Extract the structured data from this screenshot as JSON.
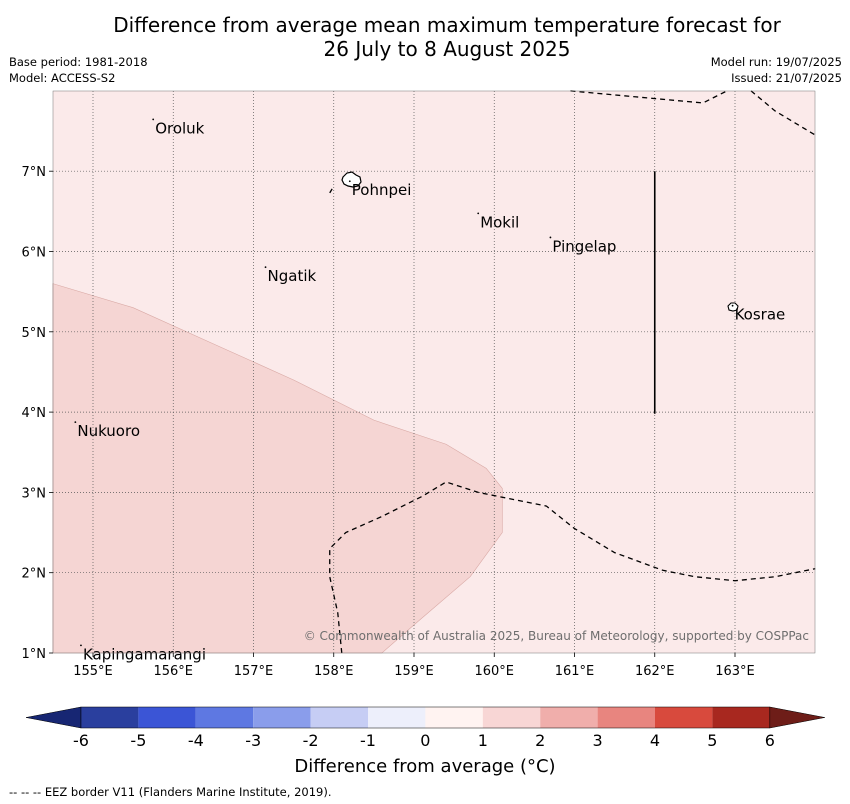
{
  "title_line1": "Difference from average mean maximum temperature forecast for",
  "title_line2": "26 July to 8 August 2025",
  "base_period": "Base period: 1981-2018",
  "model": "Model: ACCESS-S2",
  "model_run": "Model run: 19/07/2025",
  "issued": "Issued: 21/07/2025",
  "map": {
    "lon_range": [
      154.5,
      164.0
    ],
    "lat_range": [
      1.0,
      8.0
    ],
    "lon_ticks": [
      "155°E",
      "156°E",
      "157°E",
      "158°E",
      "159°E",
      "160°E",
      "161°E",
      "162°E",
      "163°E"
    ],
    "lat_ticks": [
      "1°N",
      "2°N",
      "3°N",
      "4°N",
      "5°N",
      "6°N",
      "7°N"
    ],
    "background_fill": "#fbeaea",
    "anomaly_fill": "#f5d5d3",
    "places": [
      {
        "name": "Oroluk",
        "lon": 155.75,
        "lat": 7.62
      },
      {
        "name": "Pohnpei",
        "lon": 158.2,
        "lat": 6.85
      },
      {
        "name": "Mokil",
        "lon": 159.8,
        "lat": 6.45
      },
      {
        "name": "Pingelap",
        "lon": 160.7,
        "lat": 6.15
      },
      {
        "name": "Ngatik",
        "lon": 157.15,
        "lat": 5.78
      },
      {
        "name": "Kosrae",
        "lon": 162.97,
        "lat": 5.3
      },
      {
        "name": "Nukuoro",
        "lon": 154.78,
        "lat": 3.85
      },
      {
        "name": "Kapingamarangi",
        "lon": 154.85,
        "lat": 1.07
      }
    ],
    "copyright": "© Commonwealth of Australia 2025, Bureau of Meteorology, supported by COSPPac"
  },
  "colorbar": {
    "ticks": [
      "-6",
      "-5",
      "-4",
      "-3",
      "-2",
      "-1",
      "0",
      "1",
      "2",
      "3",
      "4",
      "5",
      "6"
    ],
    "colors": [
      "#2a3f9e",
      "#3b55d6",
      "#5e78e2",
      "#8a9deb",
      "#c6cdf4",
      "#edeffb",
      "#fff3f1",
      "#f8d6d5",
      "#f0aeab",
      "#e8857f",
      "#d84a3d",
      "#a8281f"
    ],
    "extend_low": "#172673",
    "extend_high": "#6e1d18",
    "label": "Difference from average (°C)"
  },
  "eez_note": "--  --  -- EEZ border V11 (Flanders Marine Institute, 2019)."
}
